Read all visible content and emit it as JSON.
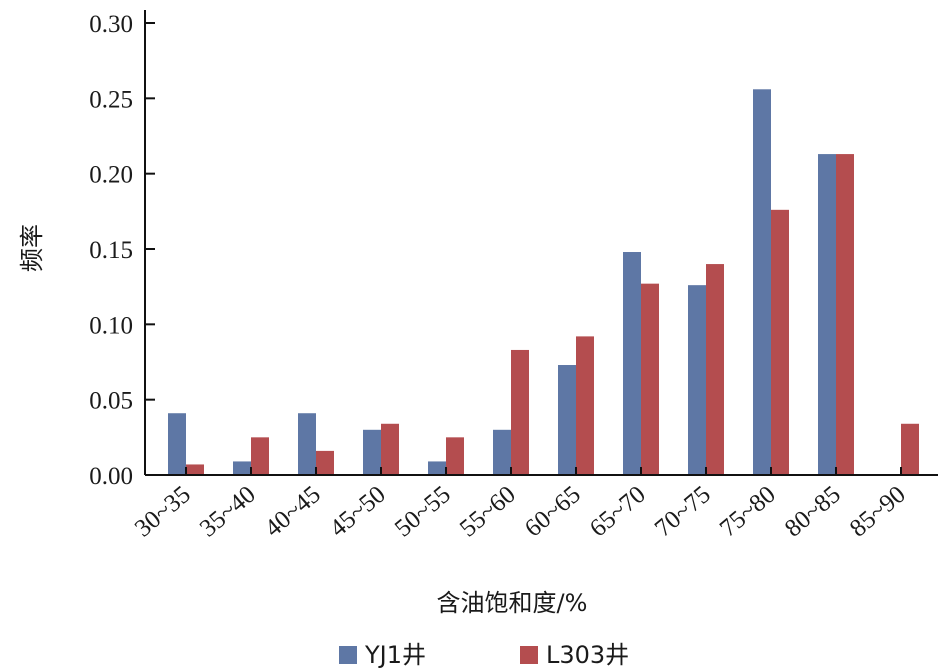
{
  "chart_data": {
    "type": "bar",
    "categories": [
      "30~35",
      "35~40",
      "40~45",
      "45~50",
      "50~55",
      "55~60",
      "60~65",
      "65~70",
      "70~75",
      "75~80",
      "80~85",
      "85~90"
    ],
    "series": [
      {
        "name": "YJ1井",
        "color": "#5E77A5",
        "values": [
          0.041,
          0.009,
          0.041,
          0.03,
          0.009,
          0.03,
          0.073,
          0.148,
          0.126,
          0.256,
          0.213,
          0.0
        ]
      },
      {
        "name": "L303井",
        "color": "#B44D4F",
        "values": [
          0.007,
          0.025,
          0.016,
          0.034,
          0.025,
          0.083,
          0.092,
          0.127,
          0.14,
          0.176,
          0.213,
          0.034
        ]
      }
    ],
    "xlabel": "含油饱和度/%",
    "ylabel": "频率",
    "ylim": [
      0,
      0.3
    ],
    "yticks": [
      "0.00",
      "0.05",
      "0.10",
      "0.15",
      "0.20",
      "0.25",
      "0.30"
    ],
    "legend_position": "bottom-center",
    "grid": false
  }
}
